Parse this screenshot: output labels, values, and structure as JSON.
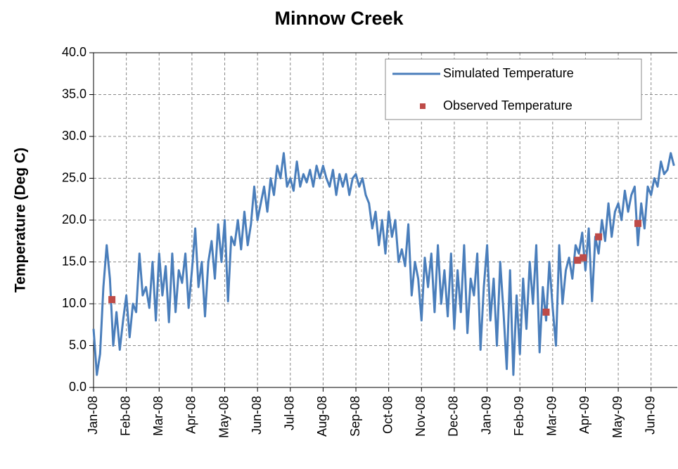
{
  "chart_data": {
    "type": "line",
    "title": "Minnow Creek",
    "y_label": "Temperature (Deg C)",
    "x": [
      0,
      0.1,
      0.2,
      0.3,
      0.4,
      0.5,
      0.6,
      0.7,
      0.8,
      0.9,
      1,
      1.1,
      1.2,
      1.3,
      1.4,
      1.5,
      1.6,
      1.7,
      1.8,
      1.9,
      2,
      2.1,
      2.2,
      2.3,
      2.4,
      2.5,
      2.6,
      2.7,
      2.8,
      2.9,
      3,
      3.1,
      3.2,
      3.3,
      3.4,
      3.5,
      3.6,
      3.7,
      3.8,
      3.9,
      4,
      4.1,
      4.2,
      4.3,
      4.4,
      4.5,
      4.6,
      4.7,
      4.8,
      4.9,
      5,
      5.1,
      5.2,
      5.3,
      5.4,
      5.5,
      5.6,
      5.7,
      5.8,
      5.9,
      6,
      6.1,
      6.2,
      6.3,
      6.4,
      6.5,
      6.6,
      6.7,
      6.8,
      6.9,
      7,
      7.1,
      7.2,
      7.3,
      7.4,
      7.5,
      7.6,
      7.7,
      7.8,
      7.9,
      8,
      8.1,
      8.2,
      8.3,
      8.4,
      8.5,
      8.6,
      8.7,
      8.8,
      8.9,
      9,
      9.1,
      9.2,
      9.3,
      9.4,
      9.5,
      9.6,
      9.7,
      9.8,
      9.9,
      10,
      10.1,
      10.2,
      10.3,
      10.4,
      10.5,
      10.6,
      10.7,
      10.8,
      10.9,
      11,
      11.1,
      11.2,
      11.3,
      11.4,
      11.5,
      11.6,
      11.7,
      11.8,
      11.9,
      12,
      12.1,
      12.2,
      12.3,
      12.4,
      12.5,
      12.6,
      12.7,
      12.8,
      12.9,
      13,
      13.1,
      13.2,
      13.3,
      13.4,
      13.5,
      13.6,
      13.7,
      13.8,
      13.9,
      14,
      14.1,
      14.2,
      14.3,
      14.4,
      14.5,
      14.6,
      14.7,
      14.8,
      14.9,
      15,
      15.1,
      15.2,
      15.3,
      15.4,
      15.5,
      15.6,
      15.7,
      15.8,
      15.9,
      16,
      16.1,
      16.2,
      16.3,
      16.4,
      16.5,
      16.6,
      16.7,
      16.8,
      16.9,
      17,
      17.1,
      17.2,
      17.3,
      17.4,
      17.5,
      17.6,
      17.7
    ],
    "series": [
      {
        "name": "Simulated Temperature",
        "color": "#4a7ebb",
        "values": [
          7,
          1.5,
          4,
          12,
          17,
          13,
          5,
          9,
          4.5,
          8,
          11,
          6,
          10,
          9,
          16,
          11,
          12,
          9.5,
          15,
          8,
          16,
          11,
          14.5,
          7.8,
          16,
          9,
          14,
          12.5,
          16,
          9.5,
          14,
          19,
          12,
          15,
          8.5,
          15,
          17.5,
          13,
          19.5,
          15,
          20,
          10.3,
          18,
          17,
          20,
          16.5,
          21,
          17,
          19.5,
          24,
          20,
          22,
          24,
          21,
          25,
          23,
          26.5,
          25,
          28,
          24,
          25,
          23.5,
          27,
          24,
          25.5,
          24.5,
          26,
          24,
          26.5,
          25,
          26.5,
          25,
          24,
          26,
          23,
          25.5,
          24,
          25.5,
          23,
          25,
          25.5,
          24,
          25,
          23,
          22,
          19,
          21,
          17,
          20,
          16,
          21,
          18,
          20,
          15,
          16.5,
          14.5,
          19.5,
          11,
          15,
          13,
          8,
          15.5,
          12,
          16,
          9,
          17,
          10,
          14,
          8.5,
          16,
          7,
          14,
          9,
          17,
          6.5,
          13,
          11,
          16,
          4.5,
          12,
          17,
          8,
          13,
          5,
          15,
          9,
          2.2,
          14,
          1.5,
          11,
          4,
          13,
          7,
          15,
          10,
          17,
          4.2,
          12,
          8,
          15,
          9.5,
          5,
          17,
          10,
          14,
          15.5,
          13,
          17,
          16,
          18.5,
          14,
          19,
          10.3,
          18,
          16,
          20,
          17.5,
          22,
          18,
          21,
          22,
          20,
          23.5,
          21,
          23,
          24,
          17,
          22,
          19,
          24,
          23,
          25,
          24,
          27,
          25.5,
          26,
          28,
          26.5
        ]
      },
      {
        "name": "Observed Temperature",
        "color": "#be4b48",
        "type": "scatter",
        "x": [
          0.56,
          13.8,
          14.76,
          14.93,
          15.4,
          16.6
        ],
        "values": [
          10.5,
          9.0,
          15.2,
          15.5,
          18.0,
          19.6
        ]
      }
    ],
    "xlim": [
      0,
      17.8
    ],
    "xticks": [
      {
        "value": 0,
        "label": "Jan-08"
      },
      {
        "value": 1,
        "label": "Feb-08"
      },
      {
        "value": 2,
        "label": "Mar-08"
      },
      {
        "value": 3,
        "label": "Apr-08"
      },
      {
        "value": 4,
        "label": "May-08"
      },
      {
        "value": 5,
        "label": "Jun-08"
      },
      {
        "value": 6,
        "label": "Jul-08"
      },
      {
        "value": 7,
        "label": "Aug-08"
      },
      {
        "value": 8,
        "label": "Sep-08"
      },
      {
        "value": 9,
        "label": "Oct-08"
      },
      {
        "value": 10,
        "label": "Nov-08"
      },
      {
        "value": 11,
        "label": "Dec-08"
      },
      {
        "value": 12,
        "label": "Jan-09"
      },
      {
        "value": 13,
        "label": "Feb-09"
      },
      {
        "value": 14,
        "label": "Mar-09"
      },
      {
        "value": 15,
        "label": "Apr-09"
      },
      {
        "value": 16,
        "label": "May-09"
      },
      {
        "value": 17,
        "label": "Jun-09"
      }
    ],
    "ylim": [
      0,
      40
    ],
    "yticks": [
      {
        "value": 0,
        "label": "0.0"
      },
      {
        "value": 5,
        "label": "5.0"
      },
      {
        "value": 10,
        "label": "10.0"
      },
      {
        "value": 15,
        "label": "15.0"
      },
      {
        "value": 20,
        "label": "20.0"
      },
      {
        "value": 25,
        "label": "25.0"
      },
      {
        "value": 30,
        "label": "30.0"
      },
      {
        "value": 35,
        "label": "35.0"
      },
      {
        "value": 40,
        "label": "40.0"
      }
    ],
    "grid": true,
    "legend": "upper right"
  }
}
